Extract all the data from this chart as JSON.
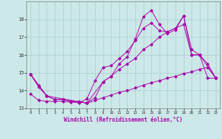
{
  "xlabel": "Windchill (Refroidissement éolien,°C)",
  "xlim": [
    -0.5,
    23.5
  ],
  "ylim": [
    13,
    19
  ],
  "yticks": [
    13,
    14,
    15,
    16,
    17,
    18
  ],
  "xticks": [
    0,
    1,
    2,
    3,
    4,
    5,
    6,
    7,
    8,
    9,
    10,
    11,
    12,
    13,
    14,
    15,
    16,
    17,
    18,
    19,
    20,
    21,
    22,
    23
  ],
  "bg_color": "#cce8e8",
  "grid_color": "#aacccc",
  "line_color": "#aa00aa",
  "lines": [
    {
      "x": [
        0,
        1,
        2,
        3,
        4,
        5,
        6,
        7,
        8,
        9,
        10,
        11,
        12,
        13,
        14,
        15,
        16,
        17,
        18,
        19,
        20,
        21,
        22,
        23
      ],
      "y": [
        14.9,
        14.3,
        13.7,
        13.5,
        13.5,
        13.4,
        13.4,
        13.3,
        13.6,
        14.5,
        14.8,
        15.5,
        15.9,
        16.9,
        18.15,
        18.5,
        17.7,
        17.2,
        17.4,
        18.2,
        16.3,
        16.0,
        14.7,
        14.7
      ]
    },
    {
      "x": [
        0,
        1,
        2,
        3,
        4,
        5,
        6,
        7,
        8,
        9,
        10,
        11,
        12,
        13,
        14,
        15,
        16,
        17,
        18,
        19,
        20,
        21,
        22,
        23
      ],
      "y": [
        14.9,
        14.2,
        13.7,
        13.5,
        13.5,
        13.4,
        13.3,
        13.55,
        14.55,
        15.3,
        15.4,
        15.8,
        16.2,
        16.8,
        17.5,
        17.8,
        17.35,
        17.3,
        17.5,
        18.2,
        16.0,
        16.0,
        15.5,
        14.7
      ]
    },
    {
      "x": [
        0,
        2,
        7,
        9,
        10,
        11,
        12,
        13,
        14,
        15,
        16,
        17,
        18,
        19,
        20,
        21,
        23
      ],
      "y": [
        14.9,
        13.7,
        13.3,
        14.5,
        14.8,
        15.2,
        15.5,
        15.8,
        16.3,
        16.6,
        17.0,
        17.3,
        17.5,
        17.7,
        16.0,
        16.0,
        14.7
      ]
    },
    {
      "x": [
        0,
        1,
        2,
        3,
        4,
        5,
        6,
        7,
        8,
        9,
        10,
        11,
        12,
        13,
        14,
        15,
        16,
        17,
        18,
        19,
        20,
        21,
        22,
        23
      ],
      "y": [
        13.8,
        13.45,
        13.4,
        13.4,
        13.4,
        13.35,
        13.35,
        13.3,
        13.45,
        13.6,
        13.75,
        13.9,
        14.0,
        14.15,
        14.3,
        14.45,
        14.55,
        14.7,
        14.8,
        14.95,
        15.05,
        15.2,
        15.3,
        14.7
      ]
    }
  ]
}
